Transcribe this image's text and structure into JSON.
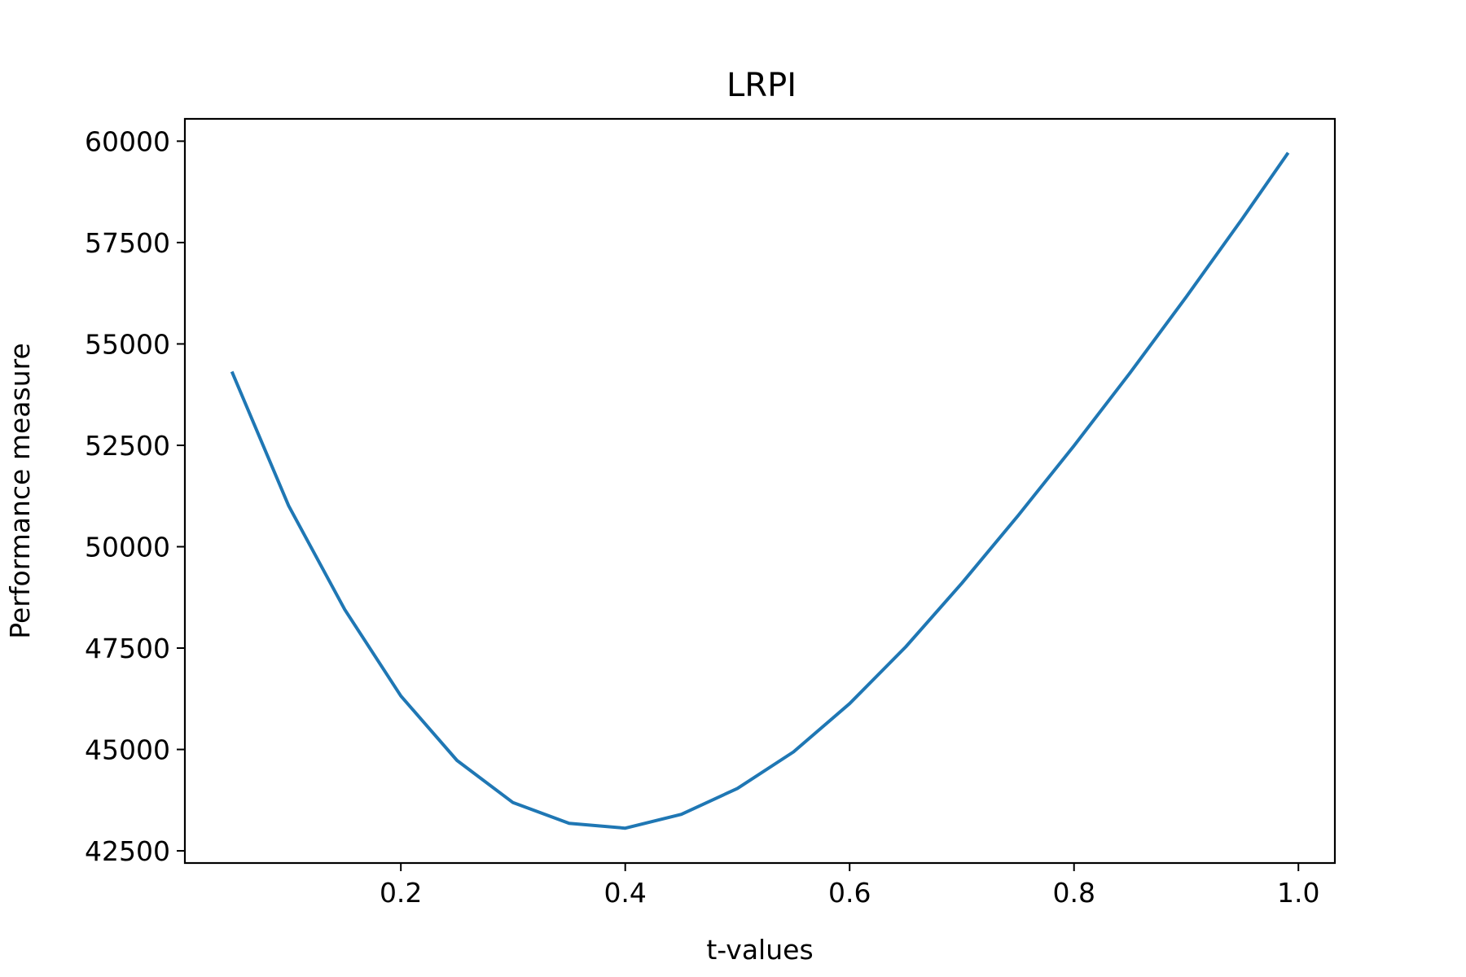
{
  "chart_data": {
    "type": "line",
    "title": "LRPI",
    "xlabel": "t-values",
    "ylabel": "Performance measure",
    "xlim": [
      0.0075,
      1.0325
    ],
    "ylim": [
      42200,
      60550
    ],
    "grid": false,
    "x_ticks": [
      0.2,
      0.4,
      0.6,
      0.8,
      1.0
    ],
    "x_tick_labels": [
      "0.2",
      "0.4",
      "0.6",
      "0.8",
      "1.0"
    ],
    "y_ticks": [
      42500,
      45000,
      47500,
      50000,
      52500,
      55000,
      57500,
      60000
    ],
    "y_tick_labels": [
      "42500",
      "45000",
      "47500",
      "50000",
      "52500",
      "55000",
      "57500",
      "60000"
    ],
    "color": "#1f77b4",
    "series": [
      {
        "x": [
          0.05,
          0.1,
          0.15,
          0.2,
          0.25,
          0.3,
          0.35,
          0.4,
          0.45,
          0.5,
          0.55,
          0.6,
          0.65,
          0.7,
          0.75,
          0.8,
          0.85,
          0.9,
          0.95,
          0.99
        ],
        "y": [
          54280,
          51010,
          48450,
          46320,
          44730,
          43690,
          43180,
          43060,
          43400,
          44040,
          44940,
          46130,
          47530,
          49100,
          50760,
          52490,
          54290,
          56160,
          58090,
          59680
        ]
      }
    ]
  }
}
